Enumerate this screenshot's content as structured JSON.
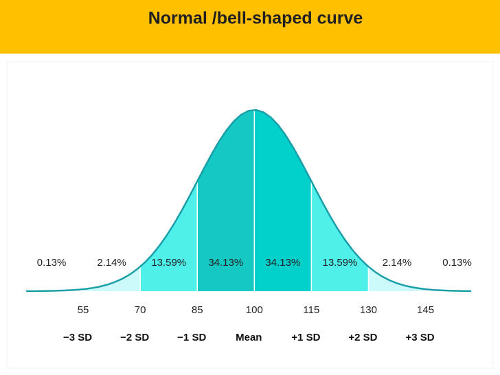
{
  "chart_data": {
    "type": "normal",
    "title": "Normal /bell-shaped curve",
    "xlim": [
      40,
      157
    ],
    "xticks": [
      55,
      70,
      85,
      100,
      115,
      130,
      145
    ],
    "sd_labels": [
      "−3 SD",
      "−2 SD",
      "−1 SD",
      "Mean",
      "+1 SD",
      "+2 SD",
      "+3 SD"
    ],
    "values": [
      0.13,
      2.14,
      13.59,
      34.13,
      34.13,
      13.59,
      2.14,
      0.13
    ],
    "value_labels": [
      "0.13%",
      "2.14%",
      "13.59%",
      "34.13%",
      "34.13%",
      "13.59%",
      "2.14%",
      "0.13%"
    ],
    "colors": [
      "#ffffff",
      "#ccfafa",
      "#4ff0ea",
      "#14c8c4",
      "#00cfca",
      "#4ff0ea",
      "#ccfafa",
      "#ffffff"
    ],
    "line_color": "#1a9fa8"
  }
}
